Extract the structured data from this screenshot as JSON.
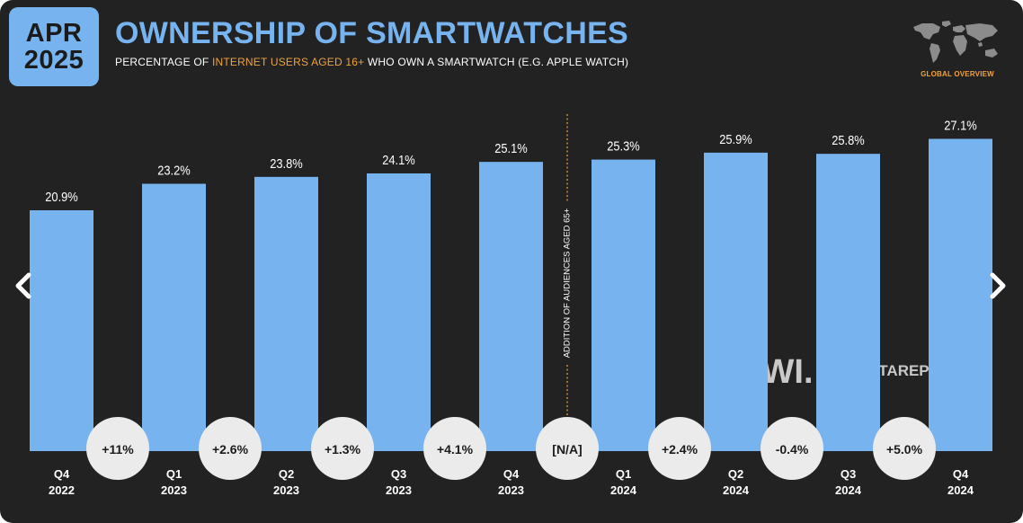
{
  "header": {
    "badge_month": "APR",
    "badge_year": "2025",
    "title": "OWNERSHIP OF SMARTWATCHES",
    "subtitle_pre": "PERCENTAGE OF ",
    "subtitle_highlight": "INTERNET USERS AGED 16+",
    "subtitle_post": " WHO OWN A SMARTWATCH (E.G. APPLE WATCH)",
    "region": "GLOBAL OVERVIEW"
  },
  "watermark": {
    "gwi": "GWI.",
    "datareportal": "DATAREPORTAL"
  },
  "colors": {
    "background": "#222222",
    "bar": "#77b3ef",
    "accent": "#f2a13a",
    "text": "#ffffff",
    "circle": "#ebebeb"
  },
  "icons": {
    "map": "world-map-icon",
    "left": "chevron-left-icon",
    "right": "chevron-right-icon"
  },
  "chart_data": {
    "type": "bar",
    "title": "OWNERSHIP OF SMARTWATCHES",
    "categories": [
      [
        "Q4",
        "2022"
      ],
      [
        "Q1",
        "2023"
      ],
      [
        "Q2",
        "2023"
      ],
      [
        "Q3",
        "2023"
      ],
      [
        "Q4",
        "2023"
      ],
      [
        "Q1",
        "2024"
      ],
      [
        "Q2",
        "2024"
      ],
      [
        "Q3",
        "2024"
      ],
      [
        "Q4",
        "2024"
      ]
    ],
    "values": [
      20.9,
      23.2,
      23.8,
      24.1,
      25.1,
      25.3,
      25.9,
      25.8,
      27.1
    ],
    "value_labels": [
      "20.9%",
      "23.2%",
      "23.8%",
      "24.1%",
      "25.1%",
      "25.3%",
      "25.9%",
      "25.8%",
      "27.1%"
    ],
    "change_labels": [
      "+11%",
      "+2.6%",
      "+1.3%",
      "+4.1%",
      "[N/A]",
      "+2.4%",
      "-0.4%",
      "+5.0%"
    ],
    "annotation": {
      "after_index": 4,
      "text": "ADDITION OF AUDIENCES AGED 65+"
    },
    "ylim": [
      0,
      30
    ],
    "grid": false,
    "legend": "none"
  }
}
